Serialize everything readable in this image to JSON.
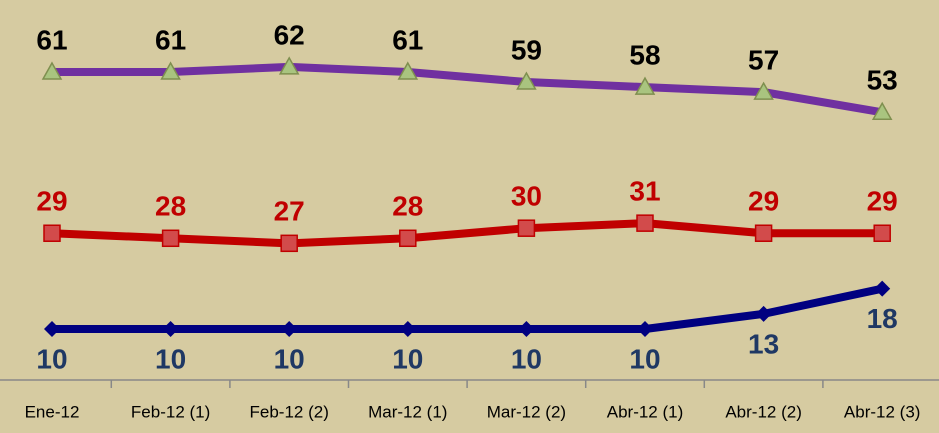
{
  "chart_data": {
    "type": "line",
    "categories": [
      "Ene-12",
      "Feb-12 (1)",
      "Feb-12 (2)",
      "Mar-12 (1)",
      "Mar-12 (2)",
      "Abr-12 (1)",
      "Abr-12 (2)",
      "Abr-12 (3)"
    ],
    "series": [
      {
        "color": "#7030a0",
        "marker": "triangle",
        "marker_color": "#a9c47f",
        "label_color": "#000000",
        "label_position": "above",
        "values": [
          61,
          61,
          62,
          61,
          59,
          58,
          57,
          53
        ]
      },
      {
        "color": "#c00000",
        "marker": "square",
        "marker_color": "#d24b4b",
        "label_color": "#c00000",
        "label_position": "above",
        "values": [
          29,
          28,
          27,
          28,
          30,
          31,
          29,
          29
        ]
      },
      {
        "color": "#000080",
        "marker": "diamond",
        "marker_color": "#000080",
        "label_color": "#1f3864",
        "label_position": "below",
        "values": [
          10,
          10,
          10,
          10,
          10,
          10,
          13,
          18
        ]
      }
    ]
  }
}
